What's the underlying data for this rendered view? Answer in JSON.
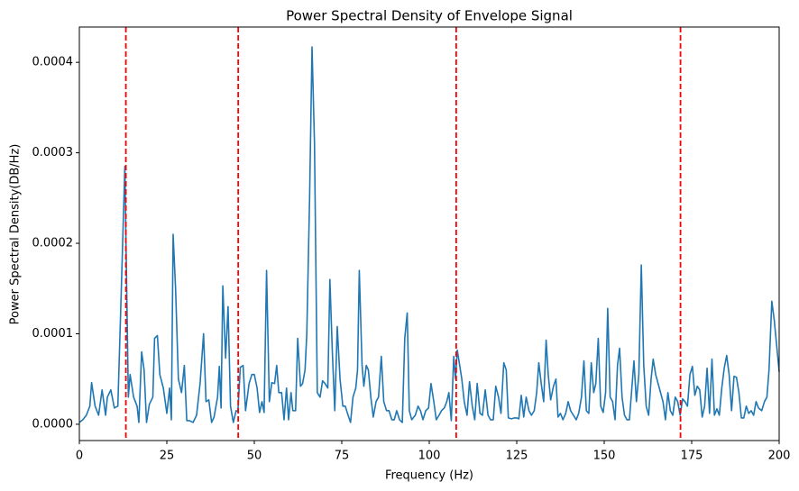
{
  "chart_data": {
    "type": "line",
    "title": "Power Spectral Density of Envelope Signal",
    "xlabel": "Frequency (Hz)",
    "ylabel": "Power Spectral Density(DB/Hz)",
    "color": "#1f77b4",
    "x": [
      0,
      1,
      2,
      3,
      3.5,
      4.5,
      5.5,
      6.5,
      7.5,
      8,
      9,
      10,
      11,
      12,
      13,
      14,
      14.5,
      15.5,
      16.5,
      17,
      17.8,
      18.5,
      19.2,
      20,
      21,
      21.5,
      22.3,
      23,
      24,
      25,
      25.8,
      26.3,
      26.8,
      27.5,
      28.3,
      29.2,
      30,
      30.7,
      31.5,
      32.5,
      33.5,
      34.5,
      35.5,
      36.2,
      37,
      37.8,
      38.5,
      39.5,
      40,
      40.5,
      41,
      41.8,
      42.5,
      43.2,
      44,
      44.8,
      45.3,
      46,
      46.8,
      47.5,
      48.5,
      49.3,
      50,
      50.8,
      51.5,
      52.2,
      52.8,
      53.5,
      54.3,
      55,
      55.8,
      56.4,
      57,
      57.8,
      58.5,
      59.2,
      59.8,
      60.5,
      61,
      61.8,
      62.4,
      63.2,
      63.8,
      64.5,
      65,
      65.8,
      66.5,
      67.2,
      68,
      68.8,
      69.5,
      70.2,
      71,
      71.6,
      72.3,
      73,
      73.7,
      74.5,
      75.3,
      76,
      76.8,
      77.5,
      78.2,
      79,
      79.5,
      80,
      80.8,
      81.3,
      82,
      82.6,
      83.3,
      84,
      84.8,
      85.5,
      86.3,
      87,
      87.8,
      88.5,
      89.3,
      90,
      90.7,
      91.5,
      92.3,
      93,
      93.7,
      94.3,
      95,
      96,
      96.8,
      97.5,
      98.2,
      99,
      99.8,
      100.5,
      101.3,
      102,
      102.8,
      103.5,
      104.3,
      105,
      105.6,
      106.3,
      107,
      107.5,
      108,
      108.5,
      109.3,
      110,
      110.8,
      111.5,
      112.3,
      113,
      113.7,
      114.5,
      115.2,
      116,
      116.8,
      117.5,
      118.3,
      119,
      119.8,
      120.5,
      121.3,
      122,
      122.6,
      123.5,
      124.3,
      125,
      125.6,
      126.3,
      127,
      127.7,
      128.5,
      129.2,
      130,
      130.7,
      131.3,
      132,
      132.7,
      133.4,
      134,
      134.7,
      135.5,
      136.2,
      136.8,
      137.5,
      138.2,
      139,
      139.7,
      140.4,
      141.2,
      142,
      142.7,
      143.5,
      144.2,
      144.9,
      145.6,
      146.3,
      147,
      147.6,
      148.3,
      149,
      149.7,
      150.4,
      151,
      151.7,
      152.4,
      153.1,
      153.8,
      154.4,
      155.1,
      155.8,
      156.5,
      157.2,
      157.9,
      158.5,
      159.2,
      159.9,
      160.6,
      161.3,
      162,
      162.7,
      163.4,
      164,
      164.7,
      165.4,
      166.1,
      166.8,
      167.5,
      168.2,
      168.9,
      169.6,
      170.3,
      171,
      171.7,
      172.4,
      173.1,
      173.8,
      174.5,
      175.2,
      175.9,
      176.6,
      177.3,
      178,
      178.7,
      179.4,
      180.1,
      180.8,
      181.5,
      182.2,
      182.9,
      183.6,
      184.3,
      185,
      185.7,
      186.4,
      187.1,
      187.8,
      188.5,
      189.2,
      189.9,
      190.6,
      191.3,
      192,
      192.7,
      193.4,
      194.1,
      195,
      195.8,
      196.5,
      197.1,
      197.9,
      198.6,
      200
    ],
    "values": [
      2e-06,
      5e-06,
      1e-05,
      2e-05,
      4.6e-05,
      2e-05,
      1e-05,
      3.8e-05,
      1e-05,
      3e-05,
      3.8e-05,
      1.8e-05,
      2e-05,
      0.00015,
      0.000285,
      3e-05,
      5.5e-05,
      3e-05,
      2e-05,
      2e-06,
      8e-05,
      6e-05,
      2e-06,
      2.2e-05,
      3e-05,
      9.5e-05,
      9.8e-05,
      5.5e-05,
      4e-05,
      1.2e-05,
      4e-05,
      5e-06,
      0.00021,
      0.00015,
      5e-05,
      3.5e-05,
      6.5e-05,
      4e-06,
      4e-06,
      2e-06,
      1e-05,
      4.5e-05,
      0.0001,
      2.5e-05,
      2.7e-05,
      2e-06,
      8e-06,
      3e-05,
      6.4e-05,
      1.8e-05,
      0.000153,
      7.3e-05,
      0.00013,
      2e-05,
      2e-06,
      1.5e-05,
      1.4e-05,
      6.3e-05,
      6.5e-05,
      1.5e-05,
      4.5e-05,
      5.5e-05,
      5.5e-05,
      4e-05,
      1.3e-05,
      2.5e-05,
      1.3e-05,
      0.00017,
      2.5e-05,
      4.6e-05,
      4.5e-05,
      6.5e-05,
      3.5e-05,
      3.5e-05,
      5e-06,
      4e-05,
      5e-06,
      3.5e-05,
      1.5e-05,
      1.5e-05,
      9.5e-05,
      4.2e-05,
      4.5e-05,
      6e-05,
      0.0001,
      0.00025,
      0.000417,
      0.00031,
      3.5e-05,
      3e-05,
      4.8e-05,
      4.5e-05,
      4e-05,
      0.00016,
      8e-05,
      1.5e-05,
      0.000108,
      5e-05,
      2e-05,
      2e-05,
      1e-05,
      2e-06,
      3e-05,
      4e-05,
      6e-05,
      0.00017,
      6.5e-05,
      4.2e-05,
      6.5e-05,
      6e-05,
      3e-05,
      8e-06,
      2.5e-05,
      3e-05,
      7.5e-05,
      2.5e-05,
      1.5e-05,
      1.5e-05,
      5e-06,
      5e-06,
      1.5e-05,
      5e-06,
      2e-06,
      9.5e-05,
      0.000123,
      1.5e-05,
      5e-06,
      1e-05,
      2e-05,
      1.5e-05,
      5e-06,
      1.5e-05,
      1.8e-05,
      4.5e-05,
      2.5e-05,
      5e-06,
      1e-05,
      1.5e-05,
      1.8e-05,
      2.5e-05,
      3.5e-05,
      4e-06,
      7.5e-05,
      5e-05,
      8.2e-05,
      7e-05,
      5e-05,
      2.5e-05,
      1e-05,
      4.7e-05,
      2e-05,
      5e-06,
      4.5e-05,
      1.2e-05,
      1e-05,
      3.8e-05,
      1e-05,
      5e-06,
      5e-06,
      4.2e-05,
      3e-05,
      1.2e-05,
      6.8e-05,
      6e-05,
      7e-06,
      6e-06,
      7e-06,
      7e-06,
      6e-06,
      3.2e-05,
      8e-06,
      3e-05,
      1.5e-05,
      1e-05,
      1.5e-05,
      3.5e-05,
      6.8e-05,
      4.5e-05,
      2.5e-05,
      9.3e-05,
      5.5e-05,
      2.7e-05,
      4.2e-05,
      5e-05,
      8e-06,
      1.2e-05,
      5e-06,
      1.2e-05,
      2.5e-05,
      1.5e-05,
      1e-05,
      5e-06,
      1.2e-05,
      3e-05,
      7e-05,
      1.5e-05,
      1.2e-05,
      6.8e-05,
      3.5e-05,
      4.5e-05,
      9.5e-05,
      2e-05,
      1.3e-05,
      3.5e-05,
      0.000128,
      3e-05,
      2.5e-05,
      5e-06,
      6.5e-05,
      8.4e-05,
      3e-05,
      1e-05,
      5e-06,
      5e-06,
      4e-05,
      7e-05,
      2.5e-05,
      5.5e-05,
      0.000176,
      6.5e-05,
      2e-05,
      1e-05,
      5e-05,
      7.2e-05,
      5.5e-05,
      4.5e-05,
      3.5e-05,
      2.5e-05,
      5e-06,
      3.5e-05,
      1.5e-05,
      1e-05,
      3e-05,
      2.5e-05,
      1e-05,
      2.8e-05,
      2.5e-05,
      2e-05,
      5.5e-05,
      6.4e-05,
      3.2e-05,
      4.2e-05,
      3.8e-05,
      8e-06,
      2e-05,
      6.2e-05,
      1.2e-05,
      7.2e-05,
      1e-05,
      1.7e-05,
      1e-05,
      4e-05,
      6.2e-05,
      7.6e-05,
      5.5e-05,
      1.5e-05,
      5.3e-05,
      5.2e-05,
      3.5e-05,
      7e-06,
      7e-06,
      2e-05,
      1.2e-05,
      1.5e-05,
      1e-05,
      2.5e-05,
      1.8e-05,
      1.5e-05,
      2.5e-05,
      3e-05,
      6e-05,
      0.000136,
      0.000115,
      5.8e-05
    ],
    "vlines": [
      13.3,
      45.4,
      107.7,
      171.8
    ],
    "vline_color": "#ff0000",
    "xlim": [
      0,
      200
    ],
    "xticks": [
      0,
      25,
      50,
      75,
      100,
      125,
      150,
      175,
      200
    ],
    "ylim": [
      -1.8e-05,
      0.000439
    ],
    "yticks": [
      {
        "value": 0,
        "label": "0.0000"
      },
      {
        "value": 0.0001,
        "label": "0.0001"
      },
      {
        "value": 0.0002,
        "label": "0.0002"
      },
      {
        "value": 0.0003,
        "label": "0.0003"
      },
      {
        "value": 0.0004,
        "label": "0.0004"
      }
    ]
  }
}
